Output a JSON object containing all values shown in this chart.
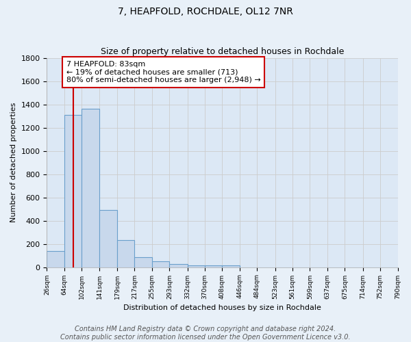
{
  "title": "7, HEAPFOLD, ROCHDALE, OL12 7NR",
  "subtitle": "Size of property relative to detached houses in Rochdale",
  "xlabel": "Distribution of detached houses by size in Rochdale",
  "ylabel": "Number of detached properties",
  "bar_values": [
    140,
    1310,
    1360,
    490,
    230,
    85,
    50,
    25,
    15,
    15,
    15,
    0,
    0,
    0,
    0,
    0,
    0,
    0,
    0,
    0
  ],
  "bin_labels": [
    "26sqm",
    "64sqm",
    "102sqm",
    "141sqm",
    "179sqm",
    "217sqm",
    "255sqm",
    "293sqm",
    "332sqm",
    "370sqm",
    "408sqm",
    "446sqm",
    "484sqm",
    "523sqm",
    "561sqm",
    "599sqm",
    "637sqm",
    "675sqm",
    "714sqm",
    "752sqm",
    "790sqm"
  ],
  "bar_color": "#c8d8ec",
  "bar_edge_color": "#6a9fcb",
  "property_line_x": 83,
  "property_line_color": "#cc0000",
  "annotation_text": "7 HEAPFOLD: 83sqm\n← 19% of detached houses are smaller (713)\n80% of semi-detached houses are larger (2,948) →",
  "annotation_box_color": "#ffffff",
  "annotation_box_edge": "#cc0000",
  "ylim": [
    0,
    1800
  ],
  "yticks": [
    0,
    200,
    400,
    600,
    800,
    1000,
    1200,
    1400,
    1600,
    1800
  ],
  "grid_color": "#cccccc",
  "plot_bg_color": "#dce8f5",
  "fig_bg_color": "#e8f0f8",
  "footer_lines": [
    "Contains HM Land Registry data © Crown copyright and database right 2024.",
    "Contains public sector information licensed under the Open Government Licence v3.0."
  ],
  "footer_fontsize": 7,
  "bin_edges": [
    26,
    64,
    102,
    141,
    179,
    217,
    255,
    293,
    332,
    370,
    408,
    446,
    484,
    523,
    561,
    599,
    637,
    675,
    714,
    752,
    790
  ]
}
